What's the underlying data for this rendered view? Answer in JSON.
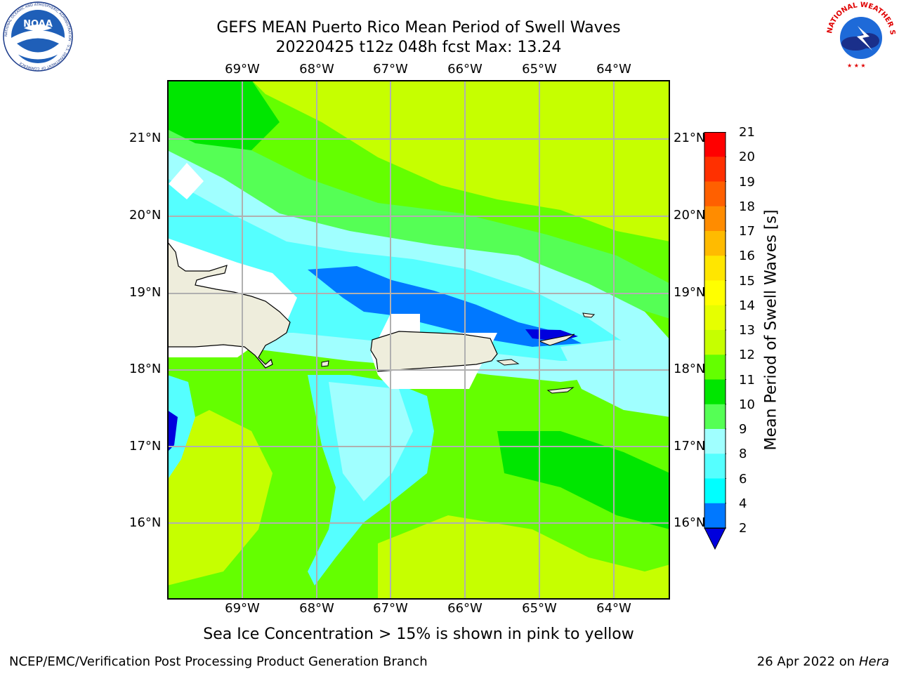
{
  "header": {
    "title_line1": "GEFS MEAN Puerto Rico Mean Period of Swell Waves",
    "title_line2": "20220425 t12z 048h fcst   Max: 13.24"
  },
  "map": {
    "lon_labels": [
      "69°W",
      "68°W",
      "67°W",
      "66°W",
      "65°W",
      "64°W"
    ],
    "lat_labels": [
      "21°N",
      "20°N",
      "19°N",
      "18°N",
      "17°N",
      "16°N"
    ]
  },
  "colorbar": {
    "title": "Mean Period of Swell Waves [s]",
    "ticks": [
      "21",
      "20",
      "19",
      "18",
      "17",
      "16",
      "15",
      "14",
      "13",
      "12",
      "11",
      "10",
      "9",
      "8",
      "6",
      "4",
      "2"
    ],
    "colors": [
      "#ff0000",
      "#ff3000",
      "#ff6000",
      "#ff8c00",
      "#ffbb00",
      "#ffe600",
      "#ffff00",
      "#e6ff00",
      "#c6ff00",
      "#64ff00",
      "#00e600",
      "#55ff55",
      "#a0ffff",
      "#55ffff",
      "#00ffff",
      "#0078ff",
      "#0000dd"
    ]
  },
  "footer": {
    "note": "Sea Ice Concentration > 15% is shown in pink to yellow",
    "credit": "NCEP/EMC/Verification Post Processing Product Generation Branch",
    "date": "26 Apr 2022 on",
    "host": "Hera"
  },
  "logos": {
    "noaa_text": "NOAA",
    "noaa_ring": "NATIONAL OCEANIC AND ATMOSPHERIC ADMINISTRATION · U.S. DEPARTMENT OF COMMERCE",
    "nws_ring": "NATIONAL WEATHER SERVICE"
  }
}
